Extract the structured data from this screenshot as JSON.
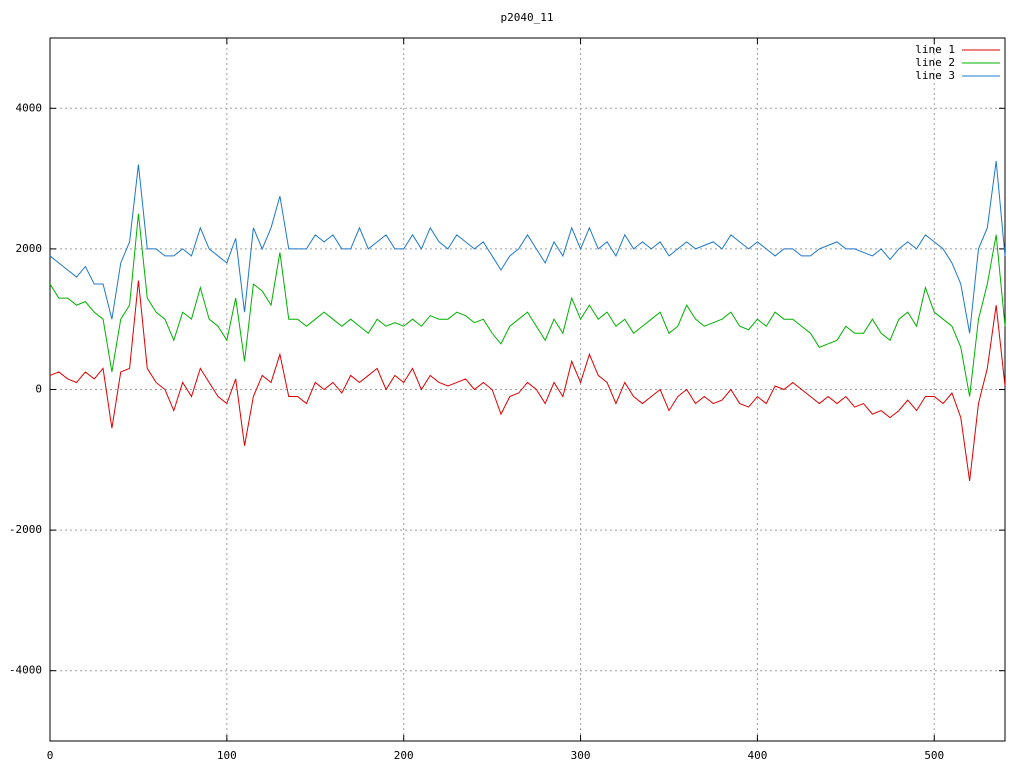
{
  "chart_data": {
    "type": "line",
    "title": "p2040_11",
    "x": [
      0,
      5,
      10,
      15,
      20,
      25,
      30,
      35,
      40,
      45,
      50,
      55,
      60,
      65,
      70,
      75,
      80,
      85,
      90,
      95,
      100,
      105,
      110,
      115,
      120,
      125,
      130,
      135,
      140,
      145,
      150,
      155,
      160,
      165,
      170,
      175,
      180,
      185,
      190,
      195,
      200,
      205,
      210,
      215,
      220,
      225,
      230,
      235,
      240,
      245,
      250,
      255,
      260,
      265,
      270,
      275,
      280,
      285,
      290,
      295,
      300,
      305,
      310,
      315,
      320,
      325,
      330,
      335,
      340,
      345,
      350,
      355,
      360,
      365,
      370,
      375,
      380,
      385,
      390,
      395,
      400,
      405,
      410,
      415,
      420,
      425,
      430,
      435,
      440,
      445,
      450,
      455,
      460,
      465,
      470,
      475,
      480,
      485,
      490,
      495,
      500,
      505,
      510,
      515,
      520,
      525,
      530,
      535,
      540
    ],
    "series": [
      {
        "name": "line 1",
        "color": "#dd0000",
        "values": [
          200,
          250,
          150,
          100,
          250,
          150,
          300,
          -550,
          250,
          300,
          1550,
          300,
          100,
          0,
          -300,
          100,
          -100,
          300,
          100,
          -100,
          -200,
          150,
          -800,
          -100,
          200,
          100,
          500,
          -100,
          -100,
          -200,
          100,
          0,
          100,
          -50,
          200,
          100,
          200,
          300,
          0,
          200,
          100,
          300,
          0,
          200,
          100,
          50,
          100,
          150,
          0,
          100,
          0,
          -350,
          -100,
          -50,
          100,
          0,
          -200,
          100,
          -100,
          400,
          100,
          500,
          200,
          100,
          -200,
          100,
          -100,
          -200,
          -100,
          0,
          -300,
          -100,
          0,
          -200,
          -100,
          -200,
          -150,
          0,
          -200,
          -250,
          -100,
          -200,
          50,
          0,
          100,
          0,
          -100,
          -200,
          -100,
          -200,
          -100,
          -250,
          -200,
          -350,
          -300,
          -400,
          -300,
          -150,
          -300,
          -100,
          -100,
          -200,
          -50,
          -400,
          -1300,
          -200,
          300,
          1200,
          50
        ]
      },
      {
        "name": "line 2",
        "color": "#00b000",
        "values": [
          1500,
          1300,
          1300,
          1200,
          1250,
          1100,
          1000,
          250,
          1000,
          1200,
          2500,
          1300,
          1100,
          1000,
          700,
          1100,
          1000,
          1450,
          1000,
          900,
          700,
          1300,
          400,
          1500,
          1400,
          1200,
          1950,
          1000,
          1000,
          900,
          1000,
          1100,
          1000,
          900,
          1000,
          900,
          800,
          1000,
          900,
          950,
          900,
          1000,
          900,
          1050,
          1000,
          1000,
          1100,
          1050,
          950,
          1000,
          800,
          650,
          900,
          1000,
          1100,
          900,
          700,
          1000,
          800,
          1300,
          1000,
          1200,
          1000,
          1100,
          900,
          1000,
          800,
          900,
          1000,
          1100,
          800,
          900,
          1200,
          1000,
          900,
          950,
          1000,
          1100,
          900,
          850,
          1000,
          900,
          1100,
          1000,
          1000,
          900,
          800,
          600,
          650,
          700,
          900,
          800,
          800,
          1000,
          800,
          700,
          1000,
          1100,
          900,
          1450,
          1100,
          1000,
          900,
          600,
          -100,
          1000,
          1500,
          2200,
          900
        ]
      },
      {
        "name": "line 3",
        "color": "#1e78c8",
        "values": [
          1900,
          1800,
          1700,
          1600,
          1750,
          1500,
          1500,
          1000,
          1800,
          2100,
          3200,
          2000,
          2000,
          1900,
          1900,
          2000,
          1900,
          2300,
          2000,
          1900,
          1800,
          2150,
          1100,
          2300,
          2000,
          2300,
          2750,
          2000,
          2000,
          2000,
          2200,
          2100,
          2200,
          2000,
          2000,
          2300,
          2000,
          2100,
          2200,
          2000,
          2000,
          2200,
          2000,
          2300,
          2100,
          2000,
          2200,
          2100,
          2000,
          2100,
          1900,
          1700,
          1900,
          2000,
          2200,
          2000,
          1800,
          2100,
          1900,
          2300,
          2000,
          2300,
          2000,
          2100,
          1900,
          2200,
          2000,
          2100,
          2000,
          2100,
          1900,
          2000,
          2100,
          2000,
          2050,
          2100,
          2000,
          2200,
          2100,
          2000,
          2100,
          2000,
          1900,
          2000,
          2000,
          1900,
          1900,
          2000,
          2050,
          2100,
          2000,
          2000,
          1950,
          1900,
          2000,
          1850,
          2000,
          2100,
          2000,
          2200,
          2100,
          2000,
          1800,
          1500,
          800,
          2000,
          2300,
          3250,
          1900
        ]
      }
    ],
    "xlim": [
      0,
      540
    ],
    "xticks": [
      0,
      100,
      200,
      300,
      400,
      500
    ],
    "ylim": [
      -5000,
      5000
    ],
    "yticks": [
      -4000,
      -2000,
      0,
      2000,
      4000
    ],
    "grid": true,
    "legend": "top-right"
  }
}
